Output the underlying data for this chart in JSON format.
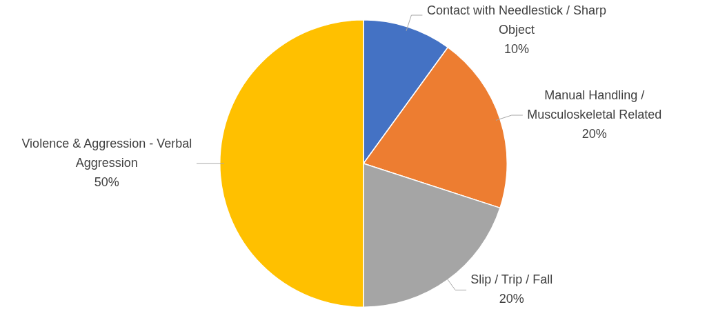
{
  "chart_data": {
    "type": "pie",
    "categories": [
      "Contact with Needlestick / Sharp Object",
      "Manual Handling / Musculoskeletal Related",
      "Slip / Trip / Fall",
      "Violence & Aggression - Verbal Aggression"
    ],
    "values": [
      10,
      20,
      20,
      50
    ],
    "colors": [
      "#4472c4",
      "#ed7d31",
      "#a5a5a5",
      "#ffc000"
    ],
    "value_labels": [
      "10%",
      "20%",
      "20%",
      "50%"
    ],
    "legend": false
  }
}
